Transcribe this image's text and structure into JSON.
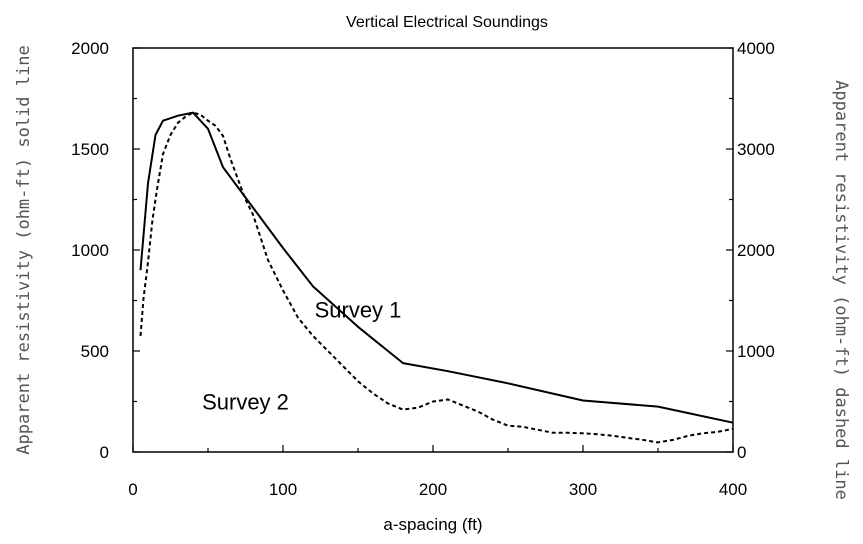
{
  "chart_data": {
    "type": "line",
    "title": "Vertical Electrical Soundings",
    "xlabel": "a-spacing (ft)",
    "ylabel_left": "Apparent resistivity (ohm-ft) solid line",
    "ylabel_right": "Apparent resistivity (ohm-ft) dashed line",
    "xlim": [
      0,
      400
    ],
    "ylim_left": [
      0,
      2000
    ],
    "ylim_right": [
      0,
      4000
    ],
    "x_ticks": [
      0,
      100,
      200,
      300,
      400
    ],
    "y_left_ticks": [
      0,
      500,
      1000,
      1500,
      2000
    ],
    "y_right_ticks": [
      0,
      1000,
      2000,
      3000,
      4000
    ],
    "grid": false,
    "annotations": [
      {
        "text": "Survey 1",
        "x": 150,
        "y": 665
      },
      {
        "text": "Survey 2",
        "x": 75,
        "y": 210
      }
    ],
    "series": [
      {
        "axis": "left",
        "style": "solid",
        "color": "#000000",
        "x": [
          5,
          10,
          15,
          20,
          30,
          40,
          50,
          60,
          80,
          100,
          120,
          150,
          180,
          210,
          250,
          300,
          350,
          400
        ],
        "y": [
          900,
          1330,
          1570,
          1640,
          1665,
          1680,
          1600,
          1410,
          1210,
          1010,
          820,
          620,
          440,
          400,
          340,
          255,
          225,
          145
        ]
      },
      {
        "axis": "right",
        "style": "dashed",
        "color": "#000000",
        "x": [
          5,
          7,
          10,
          13,
          16,
          20,
          25,
          30,
          35,
          40,
          45,
          50,
          55,
          60,
          65,
          70,
          75,
          80,
          90,
          100,
          110,
          120,
          130,
          140,
          150,
          160,
          170,
          180,
          190,
          200,
          210,
          220,
          230,
          240,
          250,
          260,
          270,
          280,
          290,
          300,
          310,
          320,
          330,
          340,
          350,
          360,
          370,
          380,
          390,
          400
        ],
        "y": [
          1150,
          1520,
          1880,
          2300,
          2600,
          2950,
          3140,
          3260,
          3320,
          3360,
          3340,
          3280,
          3230,
          3130,
          2900,
          2700,
          2500,
          2350,
          1900,
          1600,
          1330,
          1150,
          1000,
          850,
          700,
          580,
          480,
          420,
          440,
          500,
          520,
          460,
          400,
          320,
          260,
          250,
          220,
          190,
          190,
          185,
          175,
          160,
          140,
          120,
          95,
          120,
          160,
          185,
          200,
          230
        ]
      }
    ]
  }
}
